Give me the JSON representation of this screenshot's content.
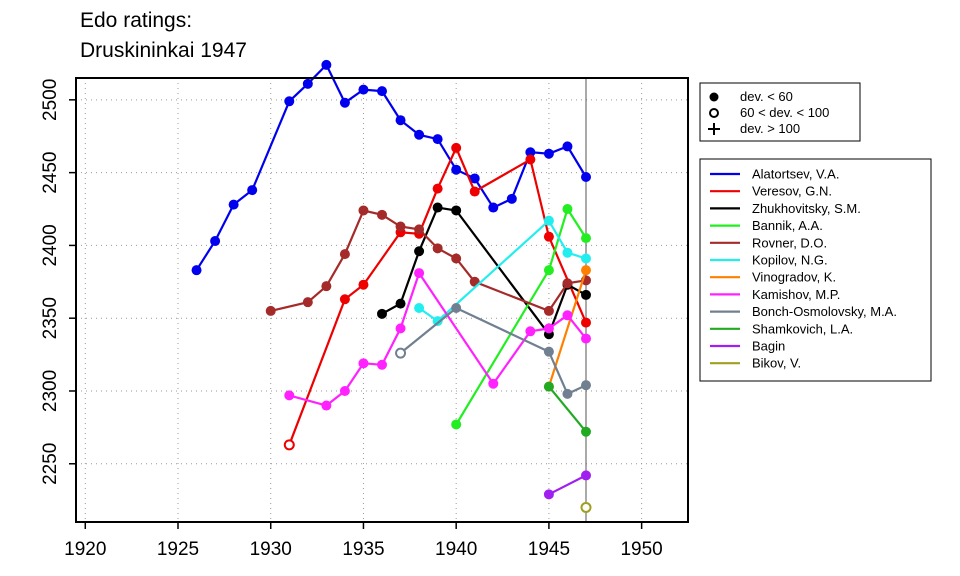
{
  "chart_data": {
    "type": "line",
    "title": "Edo ratings:",
    "subtitle": "Druskininkai 1947",
    "xlabel": "",
    "ylabel": "",
    "xlim": [
      1919.5,
      1952.5
    ],
    "ylim": [
      2210,
      2515
    ],
    "x_ticks": [
      1920,
      1925,
      1930,
      1935,
      1940,
      1945,
      1950
    ],
    "y_ticks": [
      2250,
      2300,
      2350,
      2400,
      2450,
      2500
    ],
    "grid": true,
    "reference_line_x": 1947,
    "marker_legend": [
      {
        "symbol": "filled",
        "label": "dev. < 60"
      },
      {
        "symbol": "open",
        "label": "60 < dev. < 100"
      },
      {
        "symbol": "plus",
        "label": "dev. > 100"
      }
    ],
    "series": [
      {
        "name": "Alatortsev, V.A.",
        "color": "#0000ee",
        "points": [
          {
            "x": 1926,
            "y": 2383
          },
          {
            "x": 1927,
            "y": 2403
          },
          {
            "x": 1928,
            "y": 2428
          },
          {
            "x": 1929,
            "y": 2438
          },
          {
            "x": 1931,
            "y": 2499
          },
          {
            "x": 1932,
            "y": 2511
          },
          {
            "x": 1933,
            "y": 2524
          },
          {
            "x": 1934,
            "y": 2498
          },
          {
            "x": 1935,
            "y": 2507
          },
          {
            "x": 1936,
            "y": 2506
          },
          {
            "x": 1937,
            "y": 2486
          },
          {
            "x": 1938,
            "y": 2476
          },
          {
            "x": 1939,
            "y": 2473
          },
          {
            "x": 1940,
            "y": 2452
          },
          {
            "x": 1941,
            "y": 2446
          },
          {
            "x": 1942,
            "y": 2426
          },
          {
            "x": 1943,
            "y": 2432
          },
          {
            "x": 1944,
            "y": 2464
          },
          {
            "x": 1945,
            "y": 2463
          },
          {
            "x": 1946,
            "y": 2468
          },
          {
            "x": 1947,
            "y": 2447
          }
        ]
      },
      {
        "name": "Veresov, G.N.",
        "color": "#ee0000",
        "points": [
          {
            "x": 1931,
            "y": 2263,
            "open": true
          },
          {
            "x": 1934,
            "y": 2363
          },
          {
            "x": 1935,
            "y": 2373
          },
          {
            "x": 1937,
            "y": 2409
          },
          {
            "x": 1938,
            "y": 2408
          },
          {
            "x": 1939,
            "y": 2439
          },
          {
            "x": 1940,
            "y": 2467
          },
          {
            "x": 1941,
            "y": 2437
          },
          {
            "x": 1944,
            "y": 2459
          },
          {
            "x": 1945,
            "y": 2406
          },
          {
            "x": 1947,
            "y": 2347
          }
        ]
      },
      {
        "name": "Zhukhovitsky, S.M.",
        "color": "#000000",
        "points": [
          {
            "x": 1936,
            "y": 2353
          },
          {
            "x": 1937,
            "y": 2360
          },
          {
            "x": 1938,
            "y": 2396
          },
          {
            "x": 1939,
            "y": 2426
          },
          {
            "x": 1940,
            "y": 2424
          },
          {
            "x": 1945,
            "y": 2339
          },
          {
            "x": 1946,
            "y": 2373
          },
          {
            "x": 1947,
            "y": 2366
          }
        ]
      },
      {
        "name": "Bannik, A.A.",
        "color": "#22ee22",
        "points": [
          {
            "x": 1940,
            "y": 2277
          },
          {
            "x": 1945,
            "y": 2383
          },
          {
            "x": 1946,
            "y": 2425
          },
          {
            "x": 1947,
            "y": 2405
          }
        ]
      },
      {
        "name": "Rovner, D.O.",
        "color": "#a52a2a",
        "points": [
          {
            "x": 1930,
            "y": 2355
          },
          {
            "x": 1932,
            "y": 2361
          },
          {
            "x": 1933,
            "y": 2372
          },
          {
            "x": 1934,
            "y": 2394
          },
          {
            "x": 1935,
            "y": 2424
          },
          {
            "x": 1936,
            "y": 2421
          },
          {
            "x": 1937,
            "y": 2413
          },
          {
            "x": 1938,
            "y": 2411
          },
          {
            "x": 1939,
            "y": 2398
          },
          {
            "x": 1940,
            "y": 2391
          },
          {
            "x": 1941,
            "y": 2375
          },
          {
            "x": 1945,
            "y": 2355
          },
          {
            "x": 1946,
            "y": 2374
          },
          {
            "x": 1947,
            "y": 2376
          }
        ]
      },
      {
        "name": "Kopilov, N.G.",
        "color": "#22eeee",
        "points": [
          {
            "x": 1938,
            "y": 2357
          },
          {
            "x": 1939,
            "y": 2348
          },
          {
            "x": 1945,
            "y": 2417
          },
          {
            "x": 1946,
            "y": 2395
          },
          {
            "x": 1947,
            "y": 2391
          }
        ]
      },
      {
        "name": "Vinogradov, K.",
        "color": "#ff8000",
        "points": [
          {
            "x": 1945,
            "y": 2303
          },
          {
            "x": 1947,
            "y": 2383
          }
        ]
      },
      {
        "name": "Kamishov, M.P.",
        "color": "#ff22ff",
        "points": [
          {
            "x": 1931,
            "y": 2297
          },
          {
            "x": 1933,
            "y": 2290
          },
          {
            "x": 1934,
            "y": 2300
          },
          {
            "x": 1935,
            "y": 2319
          },
          {
            "x": 1936,
            "y": 2318
          },
          {
            "x": 1937,
            "y": 2343
          },
          {
            "x": 1938,
            "y": 2381
          },
          {
            "x": 1942,
            "y": 2305
          },
          {
            "x": 1944,
            "y": 2341
          },
          {
            "x": 1945,
            "y": 2343
          },
          {
            "x": 1946,
            "y": 2352
          },
          {
            "x": 1947,
            "y": 2336
          }
        ]
      },
      {
        "name": "Bonch-Osmolovsky, M.A.",
        "color": "#708090",
        "points": [
          {
            "x": 1937,
            "y": 2326,
            "open": true
          },
          {
            "x": 1940,
            "y": 2357
          },
          {
            "x": 1945,
            "y": 2327
          },
          {
            "x": 1946,
            "y": 2298
          },
          {
            "x": 1947,
            "y": 2304
          }
        ]
      },
      {
        "name": "Shamkovich, L.A.",
        "color": "#22aa22",
        "points": [
          {
            "x": 1945,
            "y": 2303
          },
          {
            "x": 1947,
            "y": 2272
          }
        ]
      },
      {
        "name": "Bagin",
        "color": "#a020f0",
        "points": [
          {
            "x": 1945,
            "y": 2229
          },
          {
            "x": 1947,
            "y": 2242
          }
        ]
      },
      {
        "name": "Bikov, V.",
        "color": "#a0a020",
        "points": [
          {
            "x": 1947,
            "y": 2220,
            "open": true
          }
        ]
      }
    ]
  }
}
